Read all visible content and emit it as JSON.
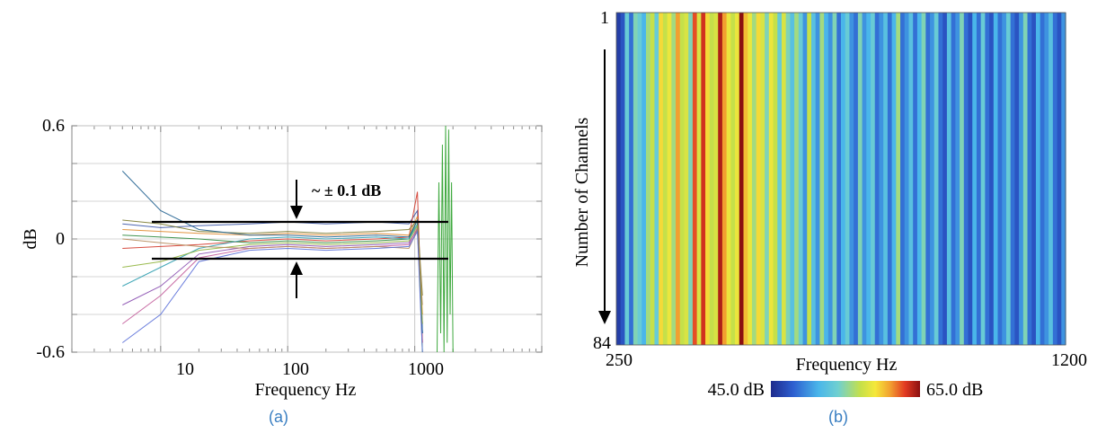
{
  "chart_data": [
    {
      "panel_label": "(a)",
      "type": "line",
      "xlabel": "Frequency Hz",
      "ylabel": "dB",
      "xscale": "log",
      "xlim": [
        2,
        10000
      ],
      "ylim": [
        -0.6,
        0.6
      ],
      "x_ticks": [
        10,
        100,
        1000
      ],
      "x_tick_labels": [
        "10",
        "100",
        "1000"
      ],
      "y_ticks": [
        -0.6,
        0,
        0.6
      ],
      "y_tick_labels": [
        "-0.6",
        "0",
        "0.6"
      ],
      "grid": true,
      "annotation": "~ ± 0.1 dB",
      "tolerance_band": [
        -0.1,
        0.1
      ],
      "series": [
        {
          "color": "#3a55a8",
          "x": [
            5,
            10,
            20,
            50,
            100,
            200,
            500,
            900,
            1050,
            1150
          ],
          "y": [
            0.08,
            0.06,
            0.07,
            0.08,
            0.09,
            0.08,
            0.09,
            0.08,
            0.15,
            -0.5
          ]
        },
        {
          "color": "#d33a2c",
          "x": [
            5,
            10,
            20,
            50,
            100,
            200,
            500,
            900,
            1050,
            1150
          ],
          "y": [
            -0.05,
            -0.04,
            -0.03,
            -0.01,
            0.0,
            -0.01,
            0.0,
            0.01,
            0.25,
            -0.55
          ]
        },
        {
          "color": "#2d8a3e",
          "x": [
            5,
            10,
            20,
            50,
            100,
            200,
            500,
            900,
            1050,
            1150
          ],
          "y": [
            0.02,
            0.01,
            0.0,
            -0.02,
            -0.01,
            -0.02,
            -0.01,
            0.0,
            0.1,
            -0.6
          ]
        },
        {
          "color": "#8a4fb0",
          "x": [
            5,
            10,
            20,
            50,
            100,
            200,
            500,
            900,
            1050,
            1150
          ],
          "y": [
            -0.35,
            -0.25,
            -0.08,
            -0.04,
            -0.03,
            -0.04,
            -0.03,
            -0.02,
            0.05,
            -0.45
          ]
        },
        {
          "color": "#e08a2e",
          "x": [
            5,
            10,
            20,
            50,
            100,
            200,
            500,
            900,
            1050,
            1150
          ],
          "y": [
            0.05,
            0.04,
            0.03,
            0.02,
            0.03,
            0.02,
            0.03,
            0.02,
            0.12,
            -0.4
          ]
        },
        {
          "color": "#2f9fb0",
          "x": [
            5,
            10,
            20,
            50,
            100,
            200,
            500,
            900,
            1050,
            1150
          ],
          "y": [
            -0.25,
            -0.15,
            -0.05,
            0.0,
            0.01,
            0.0,
            0.01,
            0.0,
            0.08,
            -0.5
          ]
        },
        {
          "color": "#7a7a30",
          "x": [
            5,
            10,
            20,
            50,
            100,
            200,
            500,
            900,
            1050,
            1150
          ],
          "y": [
            0.1,
            0.08,
            0.04,
            0.03,
            0.04,
            0.03,
            0.04,
            0.05,
            0.1,
            -0.3
          ]
        },
        {
          "color": "#c25b9a",
          "x": [
            5,
            10,
            20,
            50,
            100,
            200,
            500,
            900,
            1050,
            1150
          ],
          "y": [
            -0.45,
            -0.3,
            -0.1,
            -0.05,
            -0.04,
            -0.05,
            -0.04,
            -0.03,
            0.06,
            -0.55
          ]
        },
        {
          "color": "#1f5f8f",
          "x": [
            5,
            10,
            20,
            50,
            100,
            200,
            500,
            900,
            1050,
            1150
          ],
          "y": [
            0.36,
            0.15,
            0.05,
            0.02,
            0.02,
            0.01,
            0.02,
            0.01,
            0.1,
            -0.5
          ]
        },
        {
          "color": "#8fb43c",
          "x": [
            5,
            10,
            20,
            50,
            100,
            200,
            500,
            900,
            1050,
            1150
          ],
          "y": [
            -0.15,
            -0.12,
            -0.06,
            -0.03,
            -0.02,
            -0.03,
            -0.02,
            -0.01,
            0.07,
            -0.45
          ]
        },
        {
          "color": "#b58a5a",
          "x": [
            5,
            10,
            20,
            50,
            100,
            200,
            500,
            900,
            1050,
            1150
          ],
          "y": [
            0.0,
            -0.02,
            -0.04,
            -0.05,
            -0.04,
            -0.05,
            -0.04,
            -0.05,
            0.05,
            -0.35
          ]
        },
        {
          "color": "#5a6fd8",
          "x": [
            5,
            10,
            20,
            50,
            100,
            200,
            500,
            900,
            1050,
            1150
          ],
          "y": [
            -0.55,
            -0.4,
            -0.12,
            -0.06,
            -0.05,
            -0.06,
            -0.05,
            -0.04,
            0.04,
            -0.6
          ]
        },
        {
          "color": "#2aa02a",
          "x": [
            1500,
            1550,
            1600,
            1650,
            1700,
            1750,
            1800,
            1850,
            1900,
            1950,
            2000
          ],
          "y": [
            -0.6,
            0.3,
            -0.5,
            0.5,
            -0.6,
            0.6,
            -0.55,
            0.58,
            -0.4,
            0.3,
            -0.6
          ]
        }
      ]
    },
    {
      "panel_label": "(b)",
      "type": "heatmap",
      "xlabel": "Frequency Hz",
      "ylabel": "Number of Channels",
      "x_tick_labels": [
        "250",
        "1200"
      ],
      "xlim": [
        250,
        1200
      ],
      "y_tick_labels": [
        "1",
        "84"
      ],
      "ylim": [
        1,
        84
      ],
      "colorbar_min_label": "45.0 dB",
      "colorbar_max_label": "65.0 dB",
      "value_range": [
        45,
        65
      ],
      "colorscale": [
        "#1e2a8c",
        "#2d5fd0",
        "#4ab6ea",
        "#6fd0d0",
        "#c5e04a",
        "#f5e83a",
        "#f2a030",
        "#e23a22",
        "#8b1010"
      ],
      "column_values_dB": [
        46,
        47,
        52,
        48,
        53,
        52,
        50,
        54,
        55,
        52,
        58,
        55,
        57,
        54,
        60,
        55,
        56,
        53,
        62,
        56,
        63,
        58,
        55,
        56,
        64,
        60,
        57,
        55,
        57,
        65,
        59,
        57,
        54,
        58,
        56,
        53,
        57,
        55,
        52,
        56,
        53,
        51,
        54,
        52,
        49,
        55,
        51,
        49,
        54,
        50,
        49,
        53,
        48,
        50,
        52,
        49,
        48,
        53,
        49,
        50,
        52,
        48,
        49,
        51,
        48,
        50,
        54,
        48,
        49,
        51,
        48,
        50,
        53,
        48,
        49,
        52,
        48,
        47,
        51,
        48,
        49,
        53,
        48,
        47,
        50,
        48,
        52,
        48,
        47,
        50,
        48,
        49,
        52,
        48,
        47,
        49,
        53,
        48,
        47,
        50,
        48,
        49,
        51,
        48,
        47,
        49
      ]
    }
  ],
  "caption_a": "(a)",
  "caption_b": "(b)"
}
